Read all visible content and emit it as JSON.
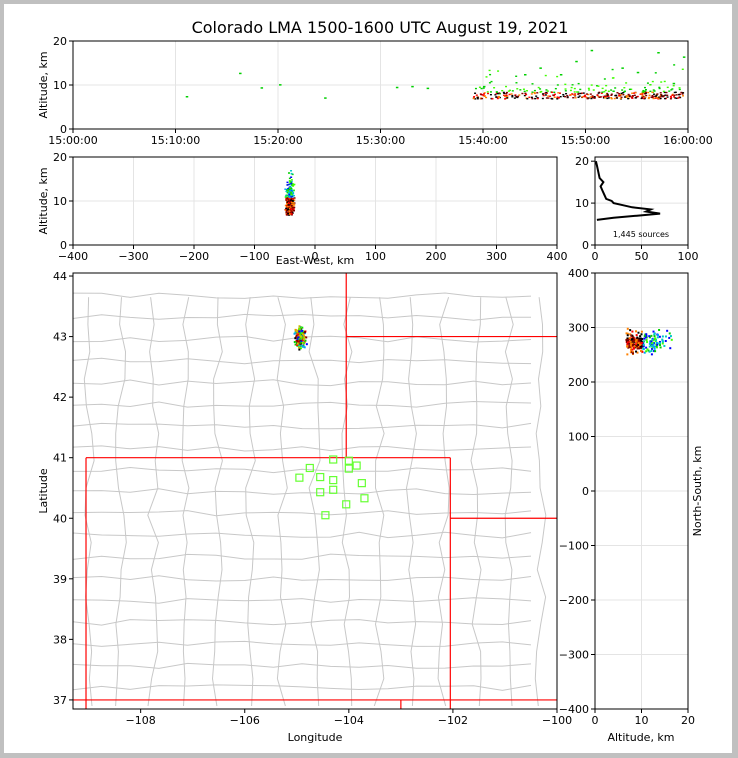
{
  "title": "Colorado LMA 1500-1600 UTC August 19, 2021",
  "source_count": "1,445 sources",
  "chart_data": [
    {
      "name": "time-altitude",
      "type": "scatter",
      "xlabel": "",
      "ylabel": "Altitude, km",
      "xlim": [
        "15:00:00",
        "16:00:00"
      ],
      "ylim": [
        0,
        20
      ],
      "xticks": [
        "15:00:00",
        "15:10:00",
        "15:20:00",
        "15:30:00",
        "15:40:00",
        "15:50:00",
        "16:00:00"
      ],
      "yticks": [
        0,
        10,
        20
      ],
      "grid": true,
      "points": [
        {
          "t": 11.0,
          "z": 7.5
        },
        {
          "t": 16.2,
          "z": 12.8
        },
        {
          "t": 18.3,
          "z": 9.5
        },
        {
          "t": 20.1,
          "z": 10.2
        },
        {
          "t": 24.5,
          "z": 7.2
        },
        {
          "t": 31.5,
          "z": 9.6
        },
        {
          "t": 33.0,
          "z": 9.8
        },
        {
          "t": 34.5,
          "z": 9.4
        },
        {
          "t": 40.0,
          "z": 9.8
        },
        {
          "t": 41.5,
          "z": 8.2
        },
        {
          "t": 44.0,
          "z": 12.5
        },
        {
          "t": 45.5,
          "z": 14.0
        },
        {
          "t": 47.5,
          "z": 12.5
        },
        {
          "t": 49.0,
          "z": 15.5
        },
        {
          "t": 50.5,
          "z": 18.0
        },
        {
          "t": 53.5,
          "z": 14.0
        },
        {
          "t": 55.0,
          "z": 13.0
        },
        {
          "t": 57.0,
          "z": 17.5
        },
        {
          "t": 58.5,
          "z": 10.5
        },
        {
          "t": 59.5,
          "z": 16.5
        }
      ]
    },
    {
      "name": "east-west-altitude",
      "type": "scatter",
      "xlabel": "East-West, km",
      "ylabel": "Altitude, km",
      "xlim": [
        -400,
        400
      ],
      "ylim": [
        0,
        20
      ],
      "xticks": [
        -400,
        -300,
        -200,
        -100,
        0,
        100,
        200,
        300,
        400
      ],
      "yticks": [
        0,
        10,
        20
      ]
    },
    {
      "name": "altitude-histogram",
      "type": "line",
      "xlabel": "",
      "xlim": [
        0,
        100
      ],
      "ylim": [
        0,
        21
      ],
      "xticks": [
        0,
        50,
        100
      ],
      "yticks": [
        0,
        10,
        20
      ],
      "profile": [
        {
          "z": 6.0,
          "n": 2
        },
        {
          "z": 6.5,
          "n": 20
        },
        {
          "z": 7.0,
          "n": 45
        },
        {
          "z": 7.5,
          "n": 70
        },
        {
          "z": 8.0,
          "n": 55
        },
        {
          "z": 8.5,
          "n": 60
        },
        {
          "z": 9.0,
          "n": 40
        },
        {
          "z": 9.5,
          "n": 30
        },
        {
          "z": 10.0,
          "n": 20
        },
        {
          "z": 10.5,
          "n": 18
        },
        {
          "z": 11.0,
          "n": 12
        },
        {
          "z": 12.0,
          "n": 10
        },
        {
          "z": 13.0,
          "n": 8
        },
        {
          "z": 14.0,
          "n": 6
        },
        {
          "z": 15.0,
          "n": 9
        },
        {
          "z": 16.0,
          "n": 5
        },
        {
          "z": 17.0,
          "n": 4
        },
        {
          "z": 18.0,
          "n": 3
        },
        {
          "z": 19.0,
          "n": 2
        },
        {
          "z": 20.0,
          "n": 1
        }
      ]
    },
    {
      "name": "plan-view-map",
      "type": "scatter",
      "xlabel": "Longitude",
      "ylabel": "Latitude",
      "xlim": [
        -109.3,
        -100.0
      ],
      "ylim": [
        36.85,
        44.05
      ],
      "xticks": [
        -108,
        -106,
        -104,
        -102,
        -100
      ],
      "yticks": [
        37,
        38,
        39,
        40,
        41,
        42,
        43,
        44
      ],
      "stations": [
        [
          -104.0,
          40.95
        ],
        [
          -104.3,
          40.97
        ],
        [
          -103.85,
          40.87
        ],
        [
          -104.75,
          40.83
        ],
        [
          -104.0,
          40.82
        ],
        [
          -104.95,
          40.67
        ],
        [
          -104.55,
          40.68
        ],
        [
          -104.3,
          40.63
        ],
        [
          -103.75,
          40.58
        ],
        [
          -104.55,
          40.43
        ],
        [
          -104.3,
          40.47
        ],
        [
          -103.7,
          40.33
        ],
        [
          -104.05,
          40.23
        ],
        [
          -104.45,
          40.05
        ]
      ]
    },
    {
      "name": "altitude-north-south",
      "type": "scatter",
      "xlabel": "Altitude, km",
      "ylabel": "North-South, km",
      "xlim": [
        0,
        20
      ],
      "ylim": [
        -400,
        400
      ],
      "xticks": [
        0,
        10,
        20
      ],
      "yticks": [
        -400,
        -300,
        -200,
        -100,
        0,
        100,
        200,
        300,
        400
      ]
    }
  ]
}
